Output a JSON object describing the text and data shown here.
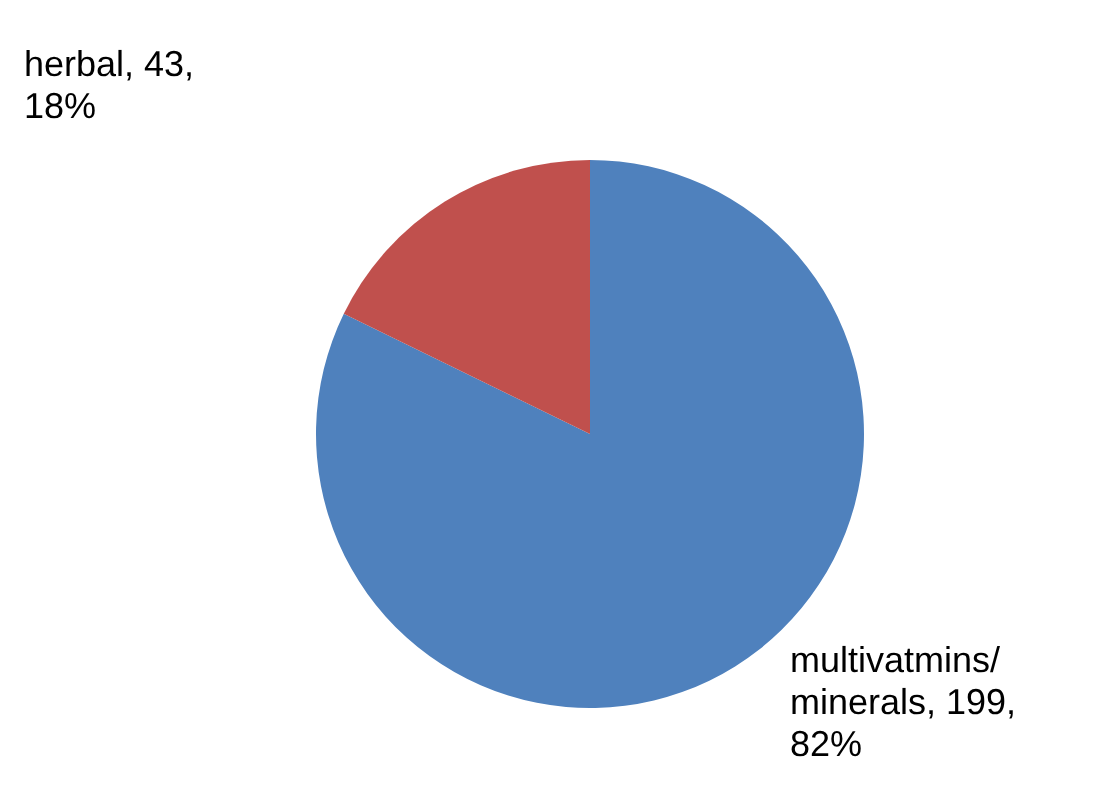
{
  "chart_data": {
    "type": "pie",
    "categories": [
      "multivatmins/ minerals",
      "herbal"
    ],
    "values": [
      199,
      43
    ],
    "value_labels": [
      ", 199, 82%",
      ", 43, 18%"
    ],
    "colors": [
      "#4f81bd",
      "#c0504d"
    ]
  }
}
